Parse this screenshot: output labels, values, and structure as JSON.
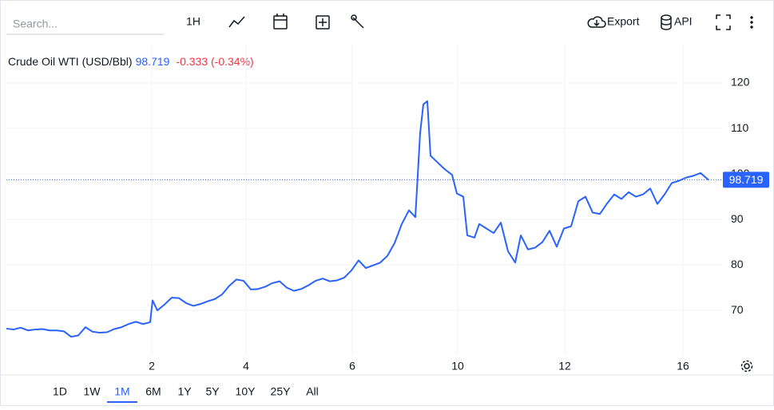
{
  "toolbar": {
    "search": "Search...",
    "interval": "1H",
    "export": "Export",
    "api": "API"
  },
  "ranges": [
    "1D",
    "1W",
    "1M",
    "6M",
    "1Y",
    "5Y",
    "10Y",
    "25Y",
    "All"
  ],
  "active_range": 2,
  "chart_data": {
    "type": "line",
    "title": "Crude Oil WTI (USD/Bbl)",
    "last": 98.719,
    "change": "-0.333 (-0.34%)",
    "x": [
      0,
      9,
      18,
      27,
      36,
      45,
      54,
      63,
      72,
      81,
      90,
      99,
      108,
      117,
      126,
      135,
      144,
      153,
      162,
      171,
      180,
      183,
      189,
      198,
      207,
      216,
      225,
      234,
      243,
      252,
      261,
      270,
      279,
      288,
      297,
      306,
      315,
      324,
      333,
      342,
      351,
      360,
      369,
      378,
      387,
      396,
      405,
      414,
      423,
      432,
      441,
      450,
      459,
      468,
      477,
      486,
      495,
      504,
      512,
      518,
      522,
      527,
      531,
      540,
      549,
      558,
      564,
      572,
      577,
      586,
      592,
      601,
      610,
      619,
      628,
      637,
      644,
      653,
      662,
      671,
      680,
      689,
      698,
      707,
      716,
      725,
      734,
      743,
      752,
      761,
      770,
      779,
      788,
      797,
      806,
      815,
      824,
      833,
      842,
      851,
      860,
      869,
      879
    ],
    "xlim": [
      0,
      897
    ],
    "xticks": [
      {
        "value": 182,
        "label": "2"
      },
      {
        "value": 300,
        "label": "4"
      },
      {
        "value": 433,
        "label": "6"
      },
      {
        "value": 565,
        "label": "10"
      },
      {
        "value": 699,
        "label": "12"
      },
      {
        "value": 847,
        "label": "16"
      }
    ],
    "series": [
      {
        "name": "Crude Oil WTI",
        "color": "#2962ff",
        "values": [
          66.0,
          65.8,
          66.2,
          65.6,
          65.8,
          65.9,
          65.6,
          65.6,
          65.4,
          64.2,
          64.5,
          66.3,
          65.3,
          65.1,
          65.2,
          65.9,
          66.3,
          67.0,
          67.5,
          67.0,
          67.4,
          72.2,
          70.0,
          71.3,
          72.8,
          72.7,
          71.6,
          71.0,
          71.4,
          72.0,
          72.5,
          73.5,
          75.4,
          76.8,
          76.5,
          74.6,
          74.7,
          75.2,
          76.0,
          76.4,
          75.0,
          74.3,
          74.7,
          75.5,
          76.5,
          77.0,
          76.4,
          76.6,
          77.2,
          78.8,
          81.0,
          79.3,
          79.9,
          80.5,
          82.0,
          84.8,
          89.0,
          92.0,
          90.5,
          109.0,
          115.3,
          116.0,
          104.0,
          102.5,
          101.0,
          99.8,
          95.7,
          95.0,
          86.5,
          86.0,
          89.0,
          88.0,
          87.0,
          89.3,
          83.0,
          80.5,
          86.5,
          83.4,
          83.8,
          85.0,
          87.5,
          84.0,
          88.0,
          88.5,
          94.0,
          95.0,
          91.5,
          91.2,
          93.5,
          95.5,
          94.5,
          96.0,
          95.0,
          95.5,
          96.8,
          93.4,
          95.5,
          98.0,
          98.5,
          99.2,
          99.6,
          100.2,
          98.7
        ]
      }
    ],
    "ylim": [
      60.2,
      128.6
    ],
    "yticks": [
      70,
      80,
      90,
      100,
      110,
      120
    ],
    "grid": true
  }
}
